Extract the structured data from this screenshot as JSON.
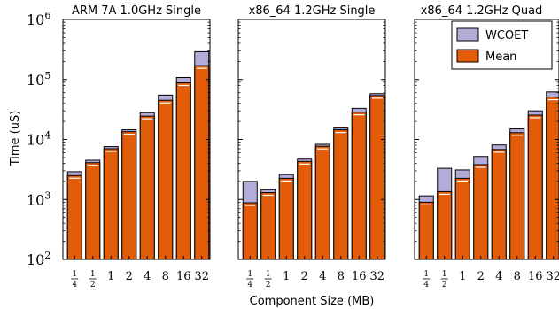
{
  "chart_data": {
    "type": "bar",
    "xlabel": "Component Size (MB)",
    "ylabel": "Time (uS)",
    "yscale": "log",
    "ylim": [
      100,
      1000000
    ],
    "y_ticks": [
      {
        "value": 100,
        "base": "10",
        "exp": "2"
      },
      {
        "value": 1000,
        "base": "10",
        "exp": "3"
      },
      {
        "value": 10000,
        "base": "10",
        "exp": "4"
      },
      {
        "value": 100000,
        "base": "10",
        "exp": "5"
      },
      {
        "value": 1000000,
        "base": "10",
        "exp": "6"
      }
    ],
    "categories": [
      {
        "num": "1",
        "den": "4"
      },
      {
        "num": "1",
        "den": "2"
      },
      {
        "label": "1"
      },
      {
        "label": "2"
      },
      {
        "label": "4"
      },
      {
        "label": "8"
      },
      {
        "label": "16"
      },
      {
        "label": "32"
      }
    ],
    "legend": {
      "placement": "top-right",
      "entries": [
        {
          "name": "WCOET",
          "color": "#b3acd6"
        },
        {
          "name": "Mean",
          "color": "#e35c0a"
        }
      ]
    },
    "panels": [
      {
        "title": "ARM 7A 1.0GHz Single",
        "series": [
          {
            "name": "WCOET",
            "values": [
              2900,
              4500,
              7600,
              14500,
              28000,
              55000,
              108000,
              290000
            ]
          },
          {
            "name": "Mean",
            "values": [
              2500,
              4100,
              7000,
              13500,
              24500,
              45000,
              88000,
              170000
            ]
          }
        ]
      },
      {
        "title": "x86_64 1.2GHz Single",
        "series": [
          {
            "name": "WCOET",
            "values": [
              2000,
              1450,
              2600,
              4700,
              8300,
              15500,
              33000,
              58000
            ]
          },
          {
            "name": "Mean",
            "values": [
              880,
              1300,
              2250,
              4300,
              7700,
              14500,
              28500,
              54000
            ]
          }
        ]
      },
      {
        "title": "x86_64 1.2GHz Quad",
        "series": [
          {
            "name": "WCOET",
            "values": [
              1150,
              3300,
              3100,
              5200,
              8100,
              15000,
              30000,
              62000
            ]
          },
          {
            "name": "Mean",
            "values": [
              900,
              1350,
              2250,
              3800,
              6800,
              13000,
              25500,
              51000
            ]
          }
        ]
      }
    ]
  },
  "colors": {
    "wcoet": "#b3acd6",
    "mean": "#e35c0a",
    "outline": "#000000"
  }
}
